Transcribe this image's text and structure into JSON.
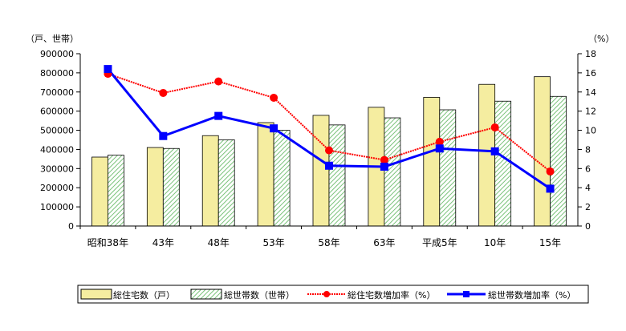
{
  "chart_data": {
    "type": "bar",
    "categories": [
      "昭和38年",
      "43年",
      "48年",
      "53年",
      "58年",
      "63年",
      "平成5年",
      "10年",
      "15年"
    ],
    "left_unit_label": "（戸、世帯）",
    "right_unit_label": "（%）",
    "left_axis": {
      "min": 0,
      "max": 900000,
      "step": 100000,
      "ticks": [
        "0",
        "100000",
        "200000",
        "300000",
        "400000",
        "500000",
        "600000",
        "700000",
        "800000",
        "900000"
      ]
    },
    "right_axis": {
      "min": 0,
      "max": 18,
      "step": 2,
      "ticks": [
        "0",
        "2",
        "4",
        "6",
        "8",
        "10",
        "12",
        "14",
        "16",
        "18"
      ]
    },
    "series": [
      {
        "name": "総住宅数（戸）",
        "kind": "bar",
        "axis": "left",
        "values": [
          360000,
          410000,
          472000,
          540000,
          578000,
          620000,
          672000,
          740000,
          780000
        ]
      },
      {
        "name": "総世帯数（世帯）",
        "kind": "bar",
        "axis": "left",
        "values": [
          370000,
          405000,
          450000,
          500000,
          528000,
          565000,
          607000,
          652000,
          677000
        ]
      },
      {
        "name": "総住宅数増加率（%）",
        "kind": "line",
        "axis": "right",
        "values": [
          15.9,
          13.9,
          15.1,
          13.4,
          7.9,
          6.9,
          8.8,
          10.3,
          5.7
        ]
      },
      {
        "name": "総世帯数増加率（%）",
        "kind": "line",
        "axis": "right",
        "values": [
          16.4,
          9.4,
          11.5,
          10.2,
          6.3,
          6.2,
          8.1,
          7.8,
          3.9
        ]
      }
    ],
    "colors": {
      "bar1_fill": "#f5eda0",
      "bar1_stroke": "#000000",
      "bar2_stripe": "#7ac27a",
      "bar2_bg": "#ffffff",
      "line1": "#ff0000",
      "line2": "#0000ff"
    },
    "grid": false,
    "legend_position": "bottom"
  }
}
